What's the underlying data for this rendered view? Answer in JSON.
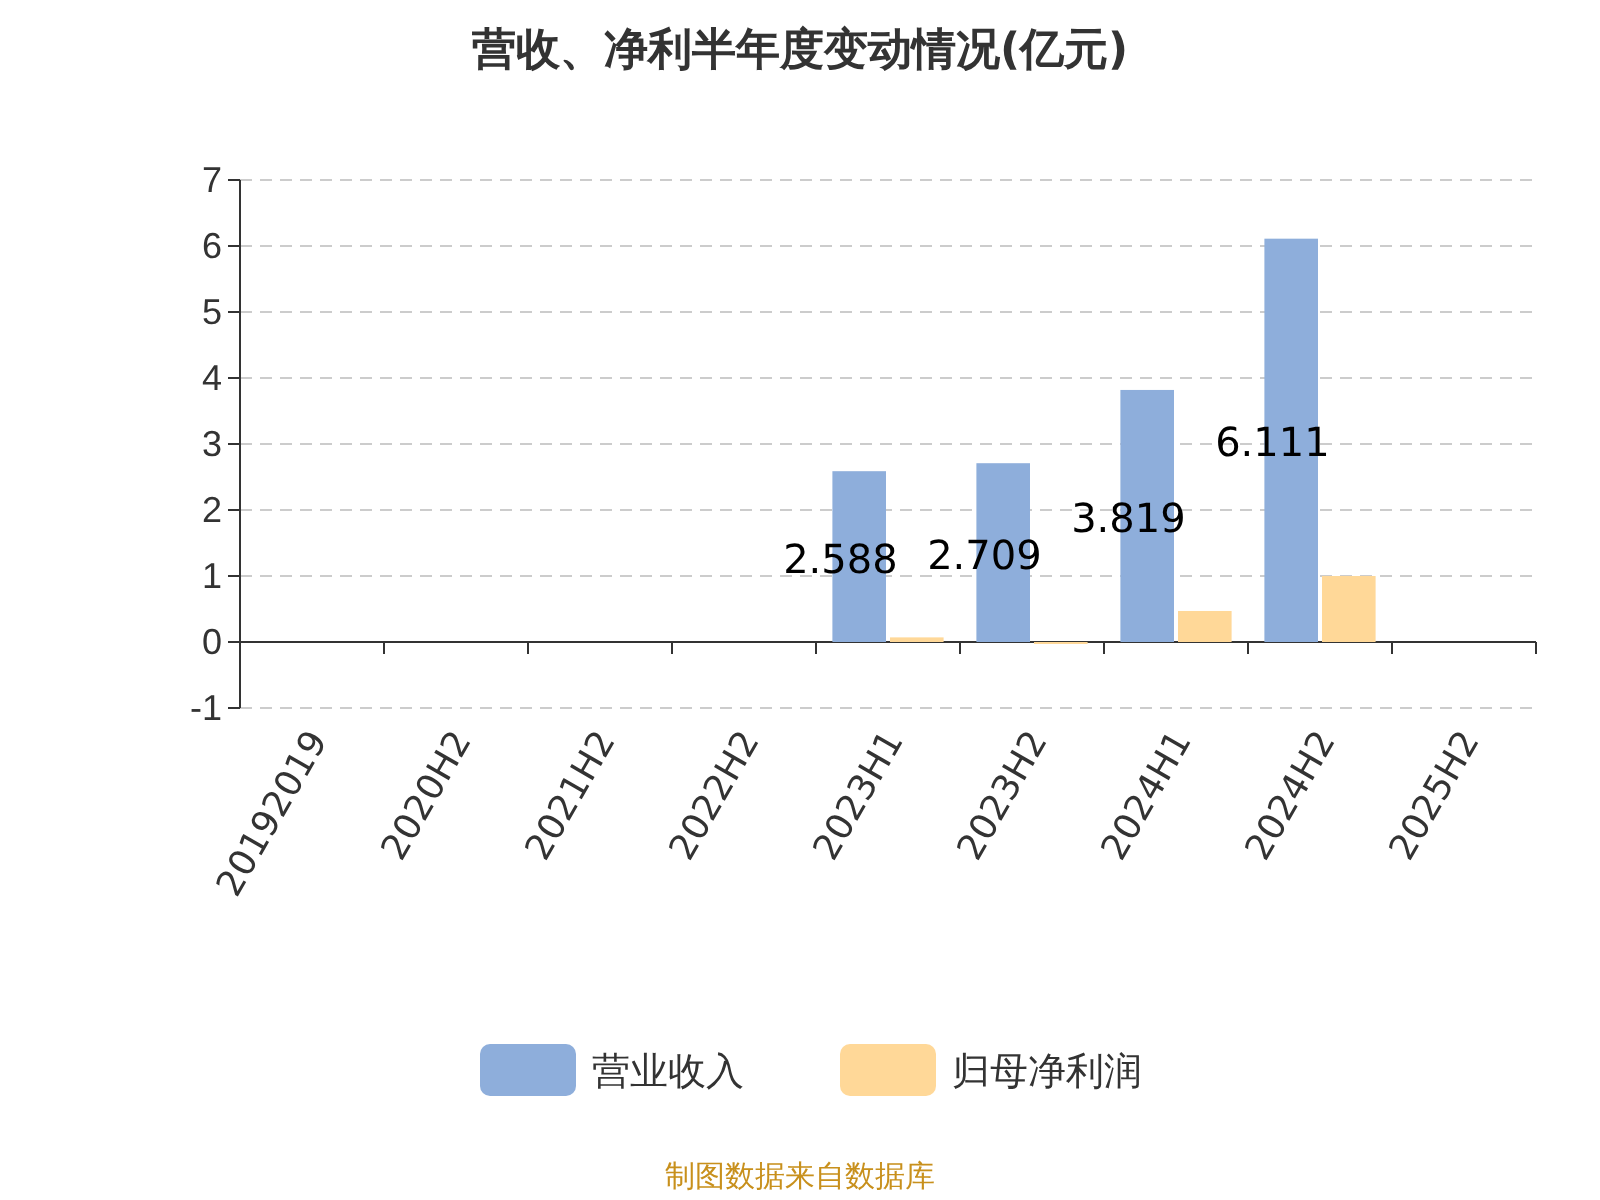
{
  "chart_data": {
    "type": "bar",
    "title": "营收、净利半年度变动情况(亿元)",
    "categories": [
      "20192019",
      "2020H2",
      "2021H2",
      "2022H2",
      "2023H1",
      "2023H2",
      "2024H1",
      "2024H2",
      "2025H2"
    ],
    "series": [
      {
        "name": "营业收入",
        "color": "#8eaedb",
        "values": [
          null,
          null,
          null,
          null,
          2.588,
          2.709,
          3.819,
          6.111,
          null
        ],
        "value_labels": [
          null,
          null,
          null,
          null,
          "2.588",
          "2.709",
          "3.819",
          "6.111",
          null
        ]
      },
      {
        "name": "归母净利润",
        "color": "#ffd898",
        "values": [
          null,
          null,
          null,
          null,
          0.07,
          -0.03,
          0.47,
          1.0,
          null
        ]
      }
    ],
    "ylim": [
      -1,
      7
    ],
    "yticks": [
      -1,
      0,
      1,
      2,
      3,
      4,
      5,
      6,
      7
    ],
    "grid": "y",
    "legend": "bottom",
    "annotations": [
      "制图数据来自数据库"
    ]
  }
}
